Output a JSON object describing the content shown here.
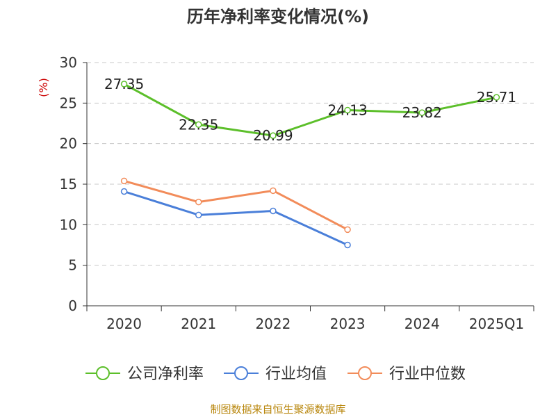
{
  "chart_data": {
    "type": "line",
    "title": "历年净利率变化情况(%)",
    "ylabel": "(%)",
    "xlabel": "",
    "categories": [
      "2020",
      "2021",
      "2022",
      "2023",
      "2024",
      "2025Q1"
    ],
    "ylim": [
      0,
      30
    ],
    "yticks": [
      0,
      5,
      10,
      15,
      20,
      25,
      30
    ],
    "grid": true,
    "legend_position": "bottom",
    "series": [
      {
        "name": "公司净利率",
        "color": "#5cbf2a",
        "values": [
          27.35,
          22.35,
          20.99,
          24.13,
          23.82,
          25.71
        ],
        "labels": [
          "27.35",
          "22.35",
          "20.99",
          "24.13",
          "23.82",
          "25.71"
        ]
      },
      {
        "name": "行业均值",
        "color": "#4a7fd9",
        "values": [
          14.1,
          11.2,
          11.7,
          7.5,
          null,
          null
        ]
      },
      {
        "name": "行业中位数",
        "color": "#f28c5a",
        "values": [
          15.4,
          12.8,
          14.2,
          9.4,
          null,
          null
        ]
      }
    ]
  },
  "footer": {
    "source": "制图数据来自恒生聚源数据库"
  }
}
